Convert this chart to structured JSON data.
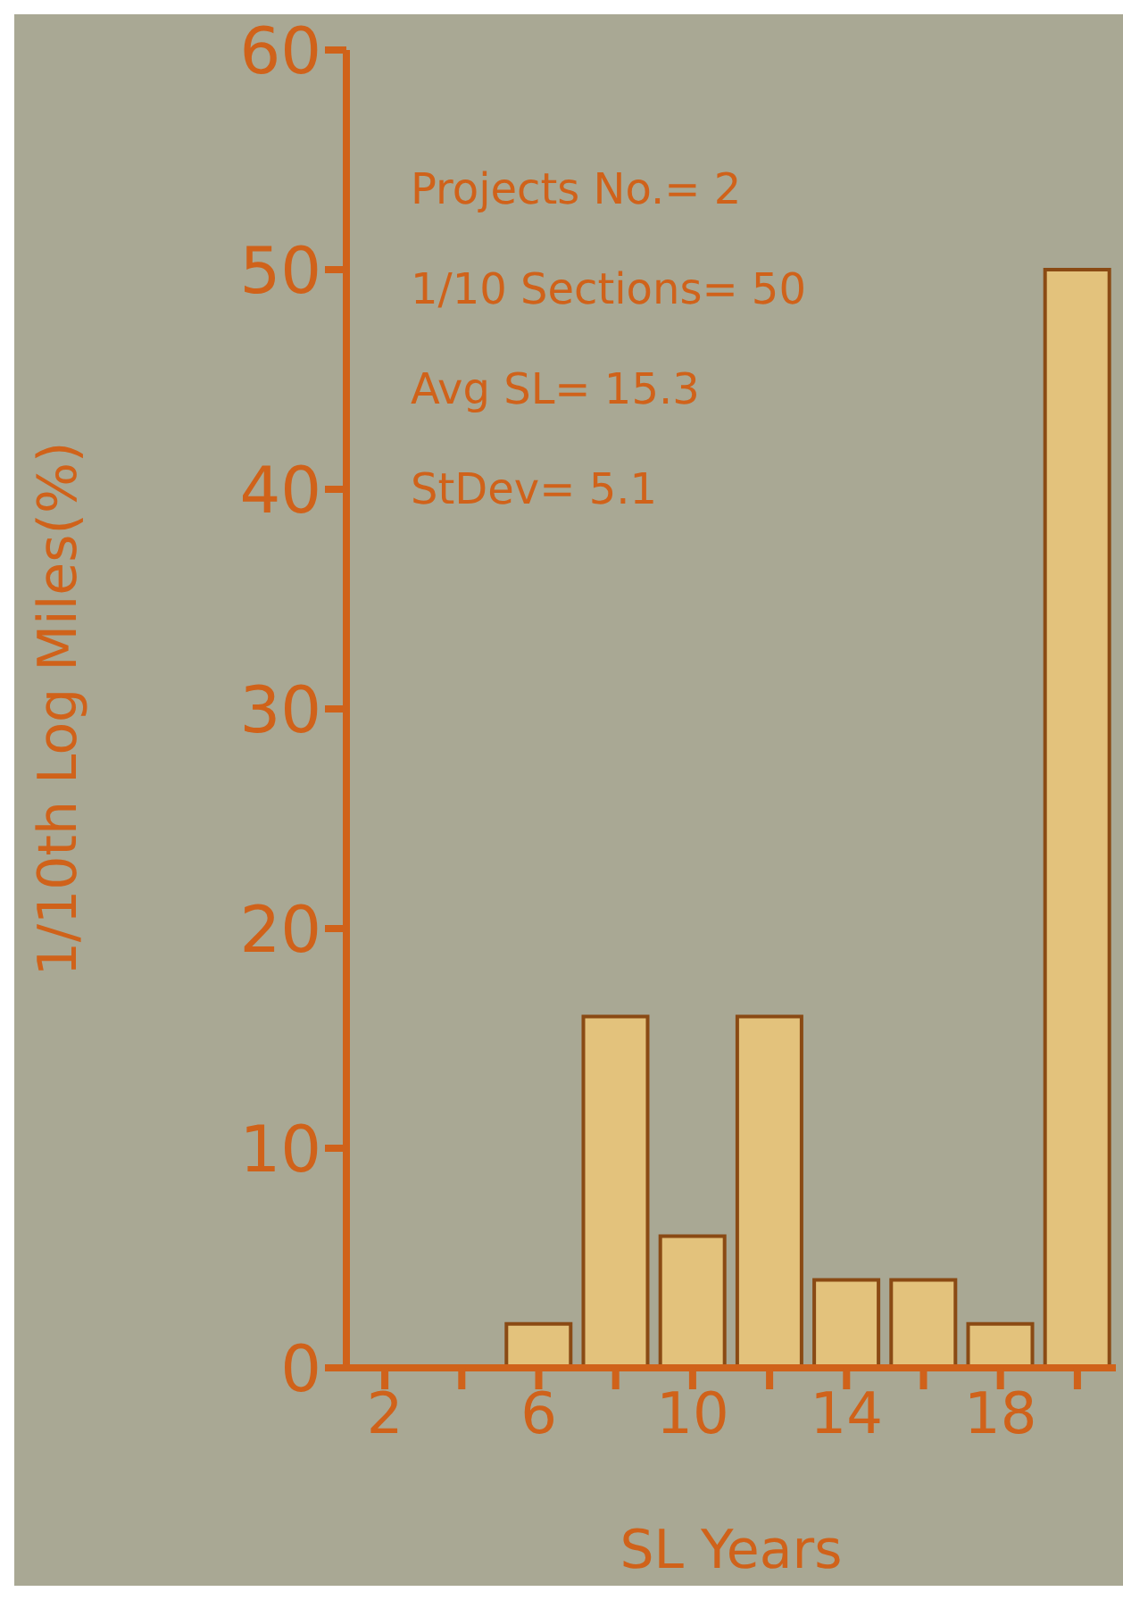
{
  "chart_data": {
    "type": "bar",
    "xlabel": "SL Years",
    "ylabel": "1/10th Log Miles(%)",
    "categories": [
      "2",
      null,
      "6",
      null,
      "10",
      null,
      "14",
      null,
      "18",
      null
    ],
    "values": [
      0,
      0,
      2,
      16,
      6,
      16,
      4,
      4,
      2,
      50
    ],
    "color": "#e3c27c",
    "ylim": [
      0,
      60
    ],
    "yticks": [
      0,
      10,
      20,
      30,
      40,
      50,
      60
    ],
    "grid": false,
    "annotations": [
      "Projects No.= 2",
      "1/10 Sections= 50",
      "Avg SL= 15.3",
      "StDev= 5.1"
    ]
  }
}
